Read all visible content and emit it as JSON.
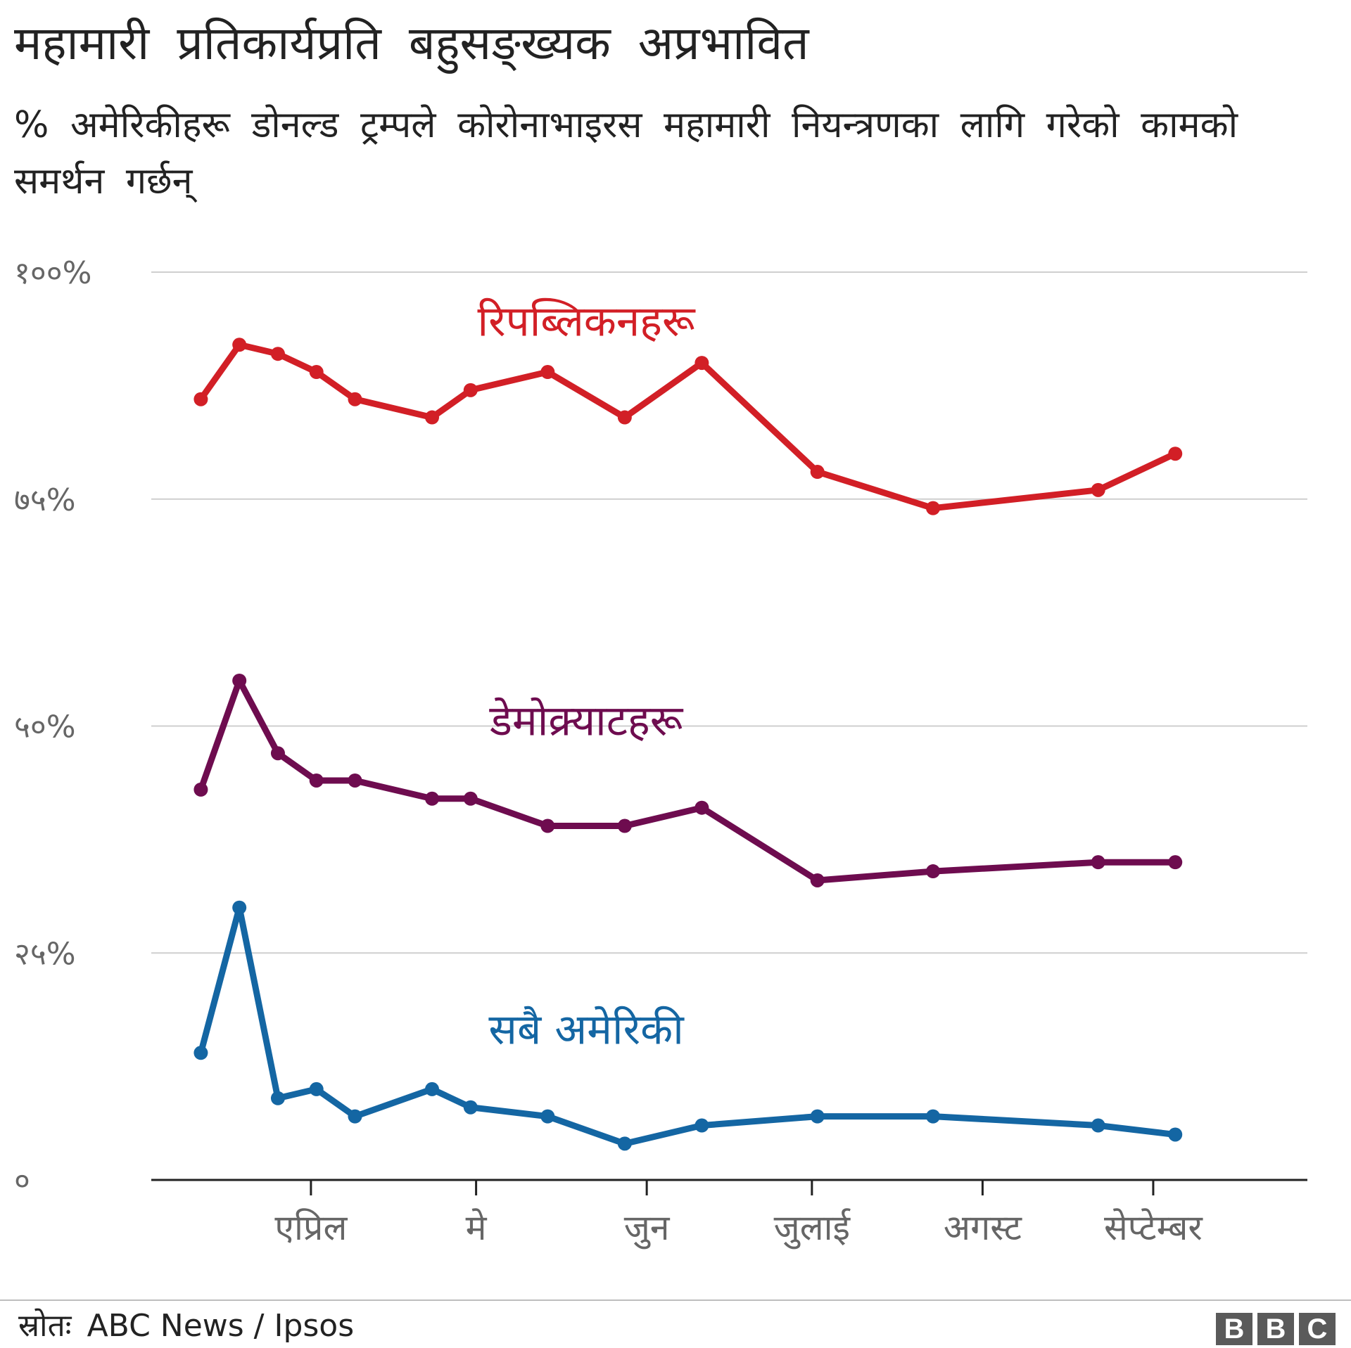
{
  "header": {
    "title": "महामारी प्रतिकार्यप्रति बहुसङ्ख्यक अप्रभावित",
    "subtitle": "% अमेरिकीहरू डोनल्ड ट्रम्पले कोरोनाभाइरस महामारी नियन्त्रणका लागि गरेको कामको समर्थन गर्छन्"
  },
  "footer": {
    "source_label": "स्रोतः",
    "source": "ABC News / Ipsos",
    "logo_letters": [
      "B",
      "B",
      "C"
    ]
  },
  "chart_data": {
    "type": "line",
    "title": "महामारी प्रतिकार्यप्रति बहुसङ्ख्यक अप्रभावित",
    "subtitle": "% अमेरिकीहरू डोनल्ड ट्रम्पले कोरोनाभाइरस महामारी नियन्त्रणका लागि गरेको कामको समर्थन गर्छन्",
    "xlabel": "",
    "ylabel": "",
    "ylim": [
      0,
      100
    ],
    "xlim": [
      "2020-03-03",
      "2020-09-29"
    ],
    "yticks": [
      {
        "value": 0,
        "label": "०"
      },
      {
        "value": 25,
        "label": "२५%"
      },
      {
        "value": 50,
        "label": "५०%"
      },
      {
        "value": 75,
        "label": "७५%"
      },
      {
        "value": 100,
        "label": "१००%"
      }
    ],
    "xticks": [
      {
        "value": "2020-04-01",
        "label": "एप्रिल"
      },
      {
        "value": "2020-05-01",
        "label": "मे"
      },
      {
        "value": "2020-06-01",
        "label": "जुन"
      },
      {
        "value": "2020-07-01",
        "label": "जुलाई"
      },
      {
        "value": "2020-08-01",
        "label": "अगस्ट"
      },
      {
        "value": "2020-09-01",
        "label": "सेप्टेम्बर"
      }
    ],
    "grid": true,
    "legend": "inline labels",
    "x": [
      "2020-03-12",
      "2020-03-19",
      "2020-03-26",
      "2020-04-02",
      "2020-04-09",
      "2020-04-23",
      "2020-04-30",
      "2020-05-14",
      "2020-05-28",
      "2020-06-11",
      "2020-07-02",
      "2020-07-23",
      "2020-08-22",
      "2020-09-05"
    ],
    "series": [
      {
        "name": "रिपब्लिकनहरू",
        "color": "#d21f26",
        "label_at": [
          "2020-05-21",
          93
        ],
        "values": [
          86,
          92,
          91,
          89,
          86,
          84,
          87,
          89,
          84,
          90,
          78,
          74,
          76,
          80
        ]
      },
      {
        "name": "डेमोक्र्याटहरू",
        "color": "#6e0c4f",
        "label_at": [
          "2020-05-21",
          49
        ],
        "values": [
          43,
          55,
          47,
          44,
          44,
          42,
          42,
          39,
          39,
          41,
          33,
          34,
          35,
          35
        ]
      },
      {
        "name": "सबै अमेरिकी",
        "color": "#1466a3",
        "label_at": [
          "2020-05-21",
          15
        ],
        "values": [
          14,
          30,
          9,
          10,
          7,
          10,
          8,
          7,
          4,
          6,
          7,
          7,
          6,
          5
        ]
      }
    ]
  }
}
